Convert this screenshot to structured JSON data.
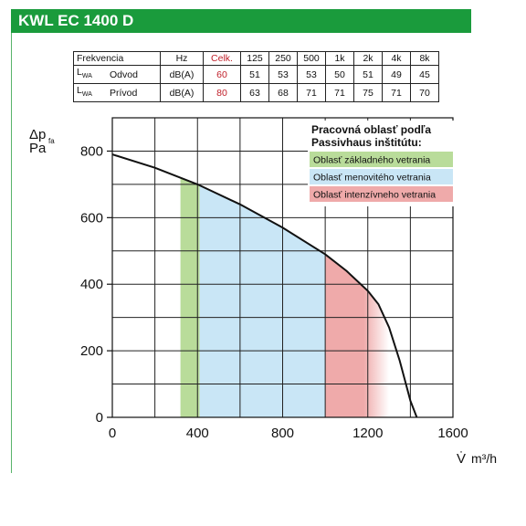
{
  "header": {
    "title": "KWL EC 1400 D",
    "color": "#1a9b3c"
  },
  "noise_table": {
    "headers": [
      "Frekvencia",
      "Hz",
      "Celk.",
      "125",
      "250",
      "500",
      "1k",
      "2k",
      "4k",
      "8k"
    ],
    "rows": [
      {
        "symbol": "L",
        "symbol_sub": "WA",
        "label": "Odvod",
        "unit": "dB(A)",
        "total": "60",
        "values": [
          "51",
          "53",
          "53",
          "50",
          "51",
          "49",
          "45"
        ]
      },
      {
        "symbol": "L",
        "symbol_sub": "WA",
        "label": "Prívod",
        "unit": "dB(A)",
        "total": "80",
        "values": [
          "63",
          "68",
          "71",
          "71",
          "75",
          "71",
          "70"
        ]
      }
    ]
  },
  "chart_data": {
    "type": "line",
    "ylabel_symbol": "Δp",
    "ylabel_sub": "fa",
    "ylabel_unit": "Pa",
    "xlabel_symbol": "V̇",
    "xlabel_unit": "m³/h",
    "xlim": [
      0,
      1600
    ],
    "ylim": [
      0,
      900
    ],
    "x_ticks": [
      0,
      400,
      800,
      1200,
      1600
    ],
    "y_ticks": [
      0,
      200,
      400,
      600,
      800
    ],
    "x_grid_step": 200,
    "y_grid_step": 100,
    "grid": true,
    "series": [
      {
        "x": [
          0,
          200,
          400,
          600,
          800,
          1000,
          1100,
          1200,
          1250,
          1300,
          1350,
          1400,
          1430
        ],
        "y": [
          790,
          750,
          700,
          640,
          570,
          490,
          440,
          380,
          340,
          270,
          170,
          50,
          0
        ],
        "color": "#111111"
      }
    ],
    "bands": [
      {
        "from": 320,
        "to": 410,
        "color": "#b9dc9a"
      },
      {
        "from": 410,
        "to": 1000,
        "color": "#c9e6f6"
      },
      {
        "from": 1000,
        "to": 1300,
        "color": "#efaaaa"
      }
    ],
    "legend": {
      "title_line1": "Pracovná oblasť podľa",
      "title_line2": "Passivhaus inštitútu:",
      "placement": "top-right",
      "items": [
        {
          "label": "Oblasť základného vetrania",
          "color": "#b9dc9a"
        },
        {
          "label": "Oblasť menovitého vetrania",
          "color": "#c9e6f6"
        },
        {
          "label": "Oblasť intenzívneho vetrania",
          "color": "#efaaaa"
        }
      ]
    }
  }
}
